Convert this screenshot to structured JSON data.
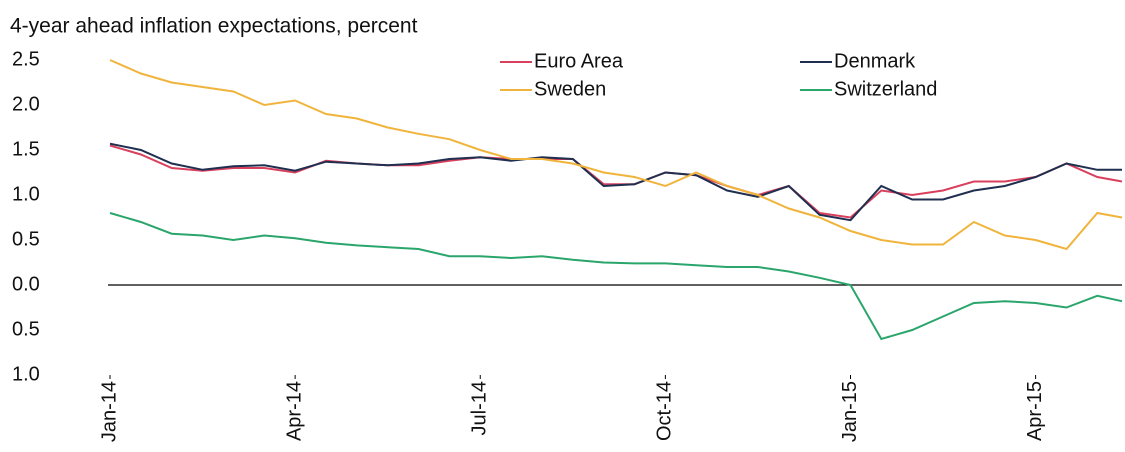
{
  "chart_data": {
    "type": "line",
    "subtitle": "4-year ahead inflation expectations, percent",
    "x": [
      0,
      0.5,
      1,
      1.5,
      2,
      2.5,
      3,
      3.5,
      4,
      4.5,
      5,
      5.5,
      6,
      6.5,
      7,
      7.5,
      8,
      8.5,
      9,
      9.5,
      10,
      10.5,
      11,
      11.5,
      12,
      12.5,
      13,
      13.5,
      14,
      14.5,
      15,
      15.5,
      16,
      16.4
    ],
    "xlim": [
      0,
      16.4
    ],
    "xticks": [
      {
        "value": 0,
        "label": "Jan-14"
      },
      {
        "value": 3,
        "label": "Apr-14"
      },
      {
        "value": 6,
        "label": "Jul-14"
      },
      {
        "value": 9,
        "label": "Oct-14"
      },
      {
        "value": 12,
        "label": "Jan-15"
      },
      {
        "value": 15,
        "label": "Apr-15"
      }
    ],
    "ylim": [
      -1,
      2.5
    ],
    "yticks": [
      {
        "value": 2.5,
        "label": "2.5"
      },
      {
        "value": 2,
        "label": "2.0"
      },
      {
        "value": 1.5,
        "label": "1.5"
      },
      {
        "value": 1,
        "label": "1.0"
      },
      {
        "value": 0.5,
        "label": "0.5"
      },
      {
        "value": 0,
        "label": "0.0"
      },
      {
        "value": -0.5,
        "label": "0.5"
      },
      {
        "value": -1,
        "label": "1.0"
      }
    ],
    "series": [
      {
        "name": "Euro Area",
        "color": "#d9405e",
        "values": [
          1.55,
          1.45,
          1.3,
          1.27,
          1.3,
          1.3,
          1.25,
          1.38,
          1.35,
          1.33,
          1.33,
          1.38,
          1.42,
          1.4,
          1.4,
          1.4,
          1.12,
          1.12,
          1.25,
          1.22,
          1.1,
          1.0,
          1.1,
          0.8,
          0.75,
          1.05,
          1.0,
          1.05,
          1.15,
          1.15,
          1.2,
          1.35,
          1.2,
          1.15
        ]
      },
      {
        "name": "Denmark",
        "color": "#1f2f4f",
        "values": [
          1.57,
          1.5,
          1.35,
          1.28,
          1.32,
          1.33,
          1.27,
          1.37,
          1.35,
          1.33,
          1.35,
          1.4,
          1.42,
          1.38,
          1.42,
          1.4,
          1.1,
          1.12,
          1.25,
          1.22,
          1.05,
          0.98,
          1.1,
          0.78,
          0.72,
          1.1,
          0.95,
          0.95,
          1.05,
          1.1,
          1.2,
          1.35,
          1.28,
          1.28
        ]
      },
      {
        "name": "Sweden",
        "color": "#f0b43c",
        "values": [
          2.5,
          2.35,
          2.25,
          2.2,
          2.15,
          2.0,
          2.05,
          1.9,
          1.85,
          1.75,
          1.68,
          1.62,
          1.5,
          1.4,
          1.4,
          1.35,
          1.25,
          1.2,
          1.1,
          1.25,
          1.1,
          1.0,
          0.85,
          0.75,
          0.6,
          0.5,
          0.45,
          0.45,
          0.7,
          0.55,
          0.5,
          0.4,
          0.8,
          0.75
        ]
      },
      {
        "name": "Switzerland",
        "color": "#2aa56b",
        "values": [
          0.8,
          0.7,
          0.57,
          0.55,
          0.5,
          0.55,
          0.52,
          0.47,
          0.44,
          0.42,
          0.4,
          0.32,
          0.32,
          0.3,
          0.32,
          0.28,
          0.25,
          0.24,
          0.24,
          0.22,
          0.2,
          0.2,
          0.15,
          0.08,
          0.0,
          -0.6,
          -0.5,
          -0.35,
          -0.2,
          -0.18,
          -0.2,
          -0.25,
          -0.12,
          -0.18
        ]
      }
    ]
  }
}
